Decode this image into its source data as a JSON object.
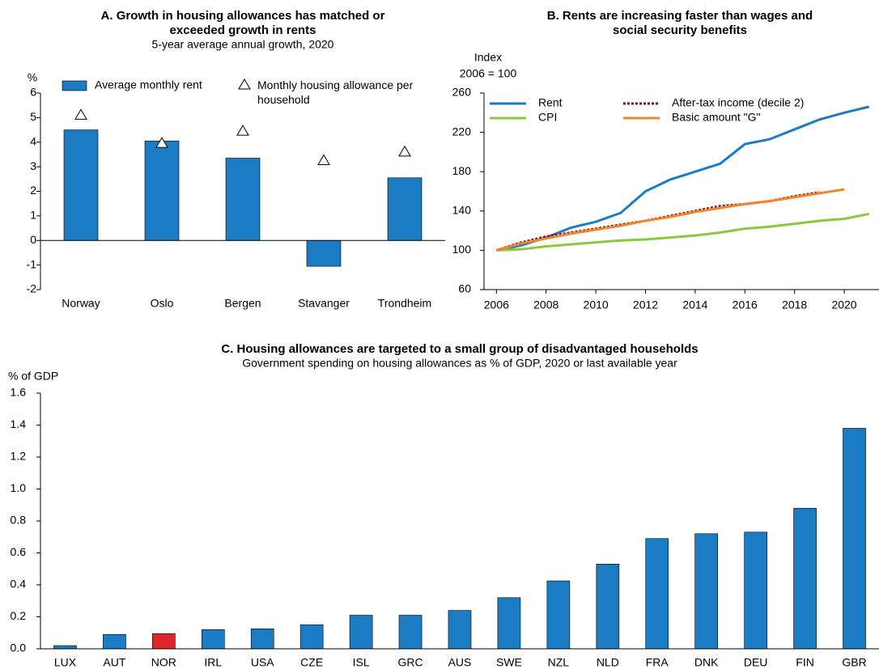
{
  "chart_data": [
    {
      "type": "bar",
      "title": [
        "A. Growth in housing allowances has matched or",
        "exceeded growth in rents"
      ],
      "subtitle": "5-year average annual growth, 2020",
      "y_label": [
        "%"
      ],
      "categories": [
        "Norway",
        "Oslo",
        "Bergen",
        "Stavanger",
        "Trondheim"
      ],
      "series": [
        {
          "name": "Average monthly rent",
          "color": "#1b7cc4",
          "style": "bar",
          "values": [
            4.5,
            4.05,
            3.35,
            -1.05,
            2.55
          ]
        },
        {
          "name": "Monthly housing allowance per household",
          "color": "#000000",
          "style": "triangle",
          "values": [
            5.1,
            3.95,
            4.45,
            3.25,
            3.6
          ]
        }
      ],
      "ylim": [
        -2,
        6
      ],
      "yticks": [
        -2,
        -1,
        0,
        1,
        2,
        3,
        4,
        5,
        6
      ]
    },
    {
      "type": "line",
      "title": [
        "B. Rents are increasing faster than wages and",
        "social security benefits"
      ],
      "y_label": [
        "Index",
        "2006 = 100"
      ],
      "x": [
        2006,
        2007,
        2008,
        2009,
        2010,
        2011,
        2012,
        2013,
        2014,
        2015,
        2016,
        2017,
        2018,
        2019,
        2020,
        2021
      ],
      "series": [
        {
          "name": "Rent",
          "color": "#1b7cc4",
          "dash": false,
          "values": [
            100,
            105,
            113,
            123,
            129,
            138,
            160,
            172,
            180,
            188,
            208,
            213,
            223,
            233,
            240,
            246
          ]
        },
        {
          "name": "After-tax income (decile 2)",
          "color": "#7b1a1a",
          "dash": true,
          "values": [
            100,
            108,
            114,
            118,
            122,
            126,
            130,
            135,
            140,
            145,
            147,
            150,
            155,
            159,
            null,
            null
          ]
        },
        {
          "name": "CPI",
          "color": "#8dc63f",
          "dash": false,
          "values": [
            100,
            101,
            104,
            106,
            108,
            110,
            111,
            113,
            115,
            118,
            122,
            124,
            127,
            130,
            132,
            137
          ]
        },
        {
          "name": "Basic amount \"G\"",
          "color": "#f0852d",
          "dash": false,
          "values": [
            100,
            107,
            112,
            117,
            121,
            125,
            130,
            134,
            139,
            143,
            147,
            150,
            154,
            158,
            162,
            null
          ]
        }
      ],
      "xlim": [
        2005.5,
        2021.4
      ],
      "xticks": [
        2006,
        2008,
        2010,
        2012,
        2014,
        2016,
        2018,
        2020
      ],
      "ylim": [
        60,
        260
      ],
      "yticks": [
        60,
        100,
        140,
        180,
        220,
        260
      ]
    },
    {
      "type": "bar",
      "title": [
        "C. Housing allowances are targeted to a small group of disadvantaged households"
      ],
      "subtitle": "Government spending on housing allowances as % of GDP, 2020 or last available year",
      "y_label": [
        "% of GDP"
      ],
      "categories": [
        "LUX",
        "AUT",
        "NOR",
        "IRL",
        "USA",
        "CZE",
        "ISL",
        "GRC",
        "AUS",
        "SWE",
        "NZL",
        "NLD",
        "FRA",
        "DNK",
        "DEU",
        "FIN",
        "GBR"
      ],
      "values": [
        0.02,
        0.09,
        0.095,
        0.12,
        0.125,
        0.15,
        0.21,
        0.21,
        0.24,
        0.32,
        0.425,
        0.53,
        0.69,
        0.72,
        0.73,
        0.88,
        1.38
      ],
      "colors": [
        "#1b7cc4",
        "#1b7cc4",
        "#e0262c",
        "#1b7cc4",
        "#1b7cc4",
        "#1b7cc4",
        "#1b7cc4",
        "#1b7cc4",
        "#1b7cc4",
        "#1b7cc4",
        "#1b7cc4",
        "#1b7cc4",
        "#1b7cc4",
        "#1b7cc4",
        "#1b7cc4",
        "#1b7cc4",
        "#1b7cc4"
      ],
      "ylim": [
        0,
        1.6
      ],
      "yticks": [
        {
          "value": 0,
          "label": "0.0"
        },
        0.2,
        0.4,
        0.6,
        0.8,
        {
          "value": 1,
          "label": "1.0"
        },
        1.2,
        1.4,
        1.6
      ]
    }
  ]
}
